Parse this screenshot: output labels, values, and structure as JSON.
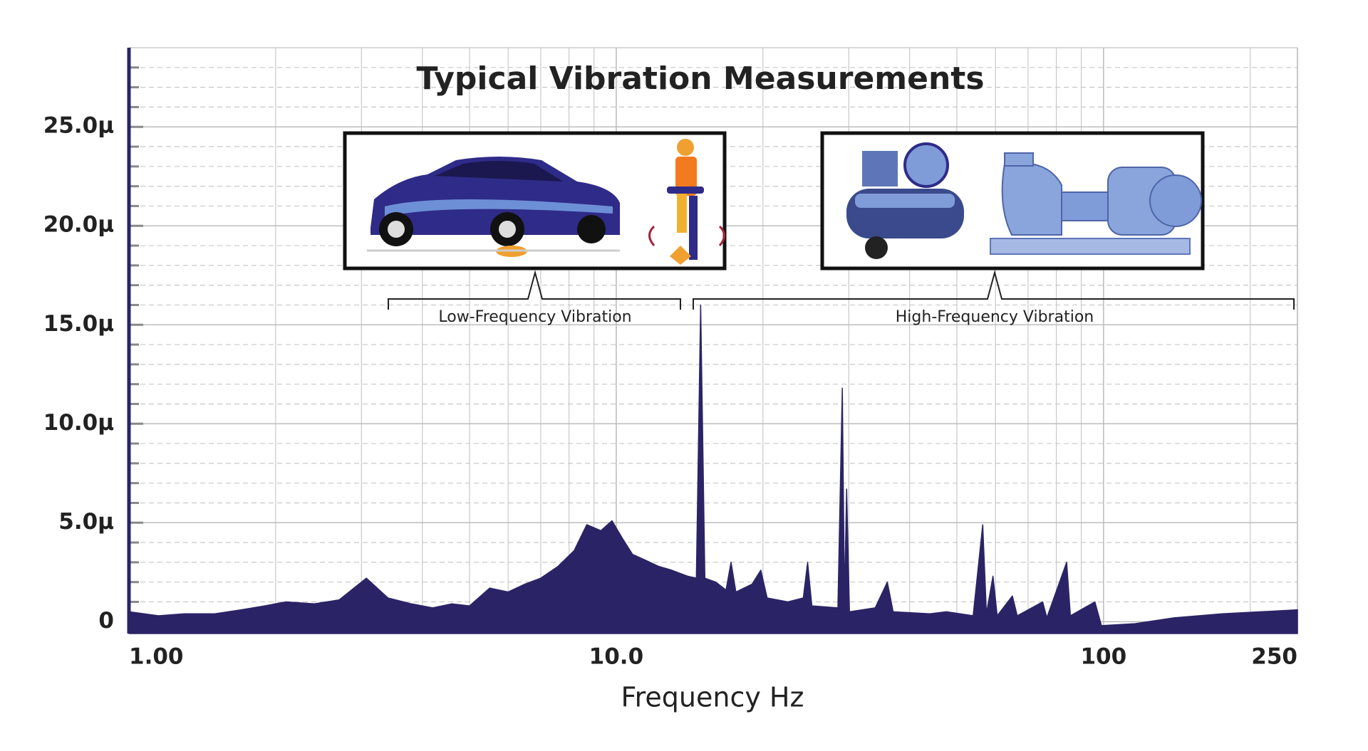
{
  "chart_data": {
    "type": "area",
    "title": "Typical Vibration Measurements",
    "x_label": "Frequency Hz",
    "annotations": [
      "Low-Frequency Vibration",
      "High-Frequency Vibration"
    ],
    "color": "#2a2466",
    "log_x": true,
    "grid": true,
    "xlim": [
      1,
      250
    ],
    "xticks": [
      {
        "value": 1,
        "label": "1.00"
      },
      {
        "value": 10,
        "label": "10.0"
      },
      100,
      250
    ],
    "ylim": [
      -0.6,
      29
    ],
    "yticks": [
      0,
      {
        "value": 5,
        "label": "5.0μ"
      },
      {
        "value": 10,
        "label": "10.0μ"
      },
      {
        "value": 15,
        "label": "15.0μ"
      },
      {
        "value": 20,
        "label": "20.0μ"
      },
      {
        "value": 25,
        "label": "25.0μ"
      }
    ],
    "x": [
      1.0,
      1.15,
      1.3,
      1.5,
      1.7,
      1.9,
      2.1,
      2.4,
      2.7,
      3.07,
      3.4,
      3.8,
      4.2,
      4.6,
      5.0,
      5.5,
      6.0,
      6.5,
      7.0,
      7.6,
      8.2,
      8.7,
      9.3,
      9.8,
      10.3,
      10.8,
      11.5,
      12.2,
      13.0,
      14.0,
      14.6,
      14.9,
      15.2,
      16.0,
      16.8,
      17.2,
      17.6,
      19.0,
      19.8,
      20.4,
      22.5,
      24.2,
      24.7,
      25.2,
      28.5,
      29.1,
      29.4,
      29.7,
      30.1,
      34.0,
      36.0,
      37.0,
      44.0,
      47.6,
      54.0,
      56.5,
      57.5,
      59.3,
      60.5,
      65.0,
      66.5,
      75.0,
      76.5,
      84.0,
      85.5,
      96.0,
      99.0,
      116.0,
      140.0,
      175.0,
      210.0,
      250.0
    ],
    "values": [
      0.5,
      0.3,
      0.4,
      0.4,
      0.6,
      0.8,
      1.0,
      0.9,
      1.1,
      2.2,
      1.2,
      0.9,
      0.7,
      0.9,
      0.8,
      1.7,
      1.5,
      1.9,
      2.2,
      2.8,
      3.6,
      4.9,
      4.6,
      5.1,
      4.2,
      3.4,
      3.1,
      2.8,
      2.6,
      2.3,
      2.2,
      16.0,
      2.2,
      2.0,
      1.6,
      3.0,
      1.5,
      1.9,
      2.6,
      1.2,
      1.0,
      1.2,
      3.0,
      0.8,
      0.7,
      11.8,
      1.0,
      6.7,
      0.5,
      0.7,
      2.0,
      0.5,
      0.4,
      0.5,
      0.3,
      4.9,
      0.4,
      2.3,
      0.3,
      1.3,
      0.3,
      1.0,
      0.2,
      3.0,
      0.3,
      1.0,
      -0.2,
      -0.1,
      0.2,
      0.4,
      0.5,
      0.6
    ]
  }
}
